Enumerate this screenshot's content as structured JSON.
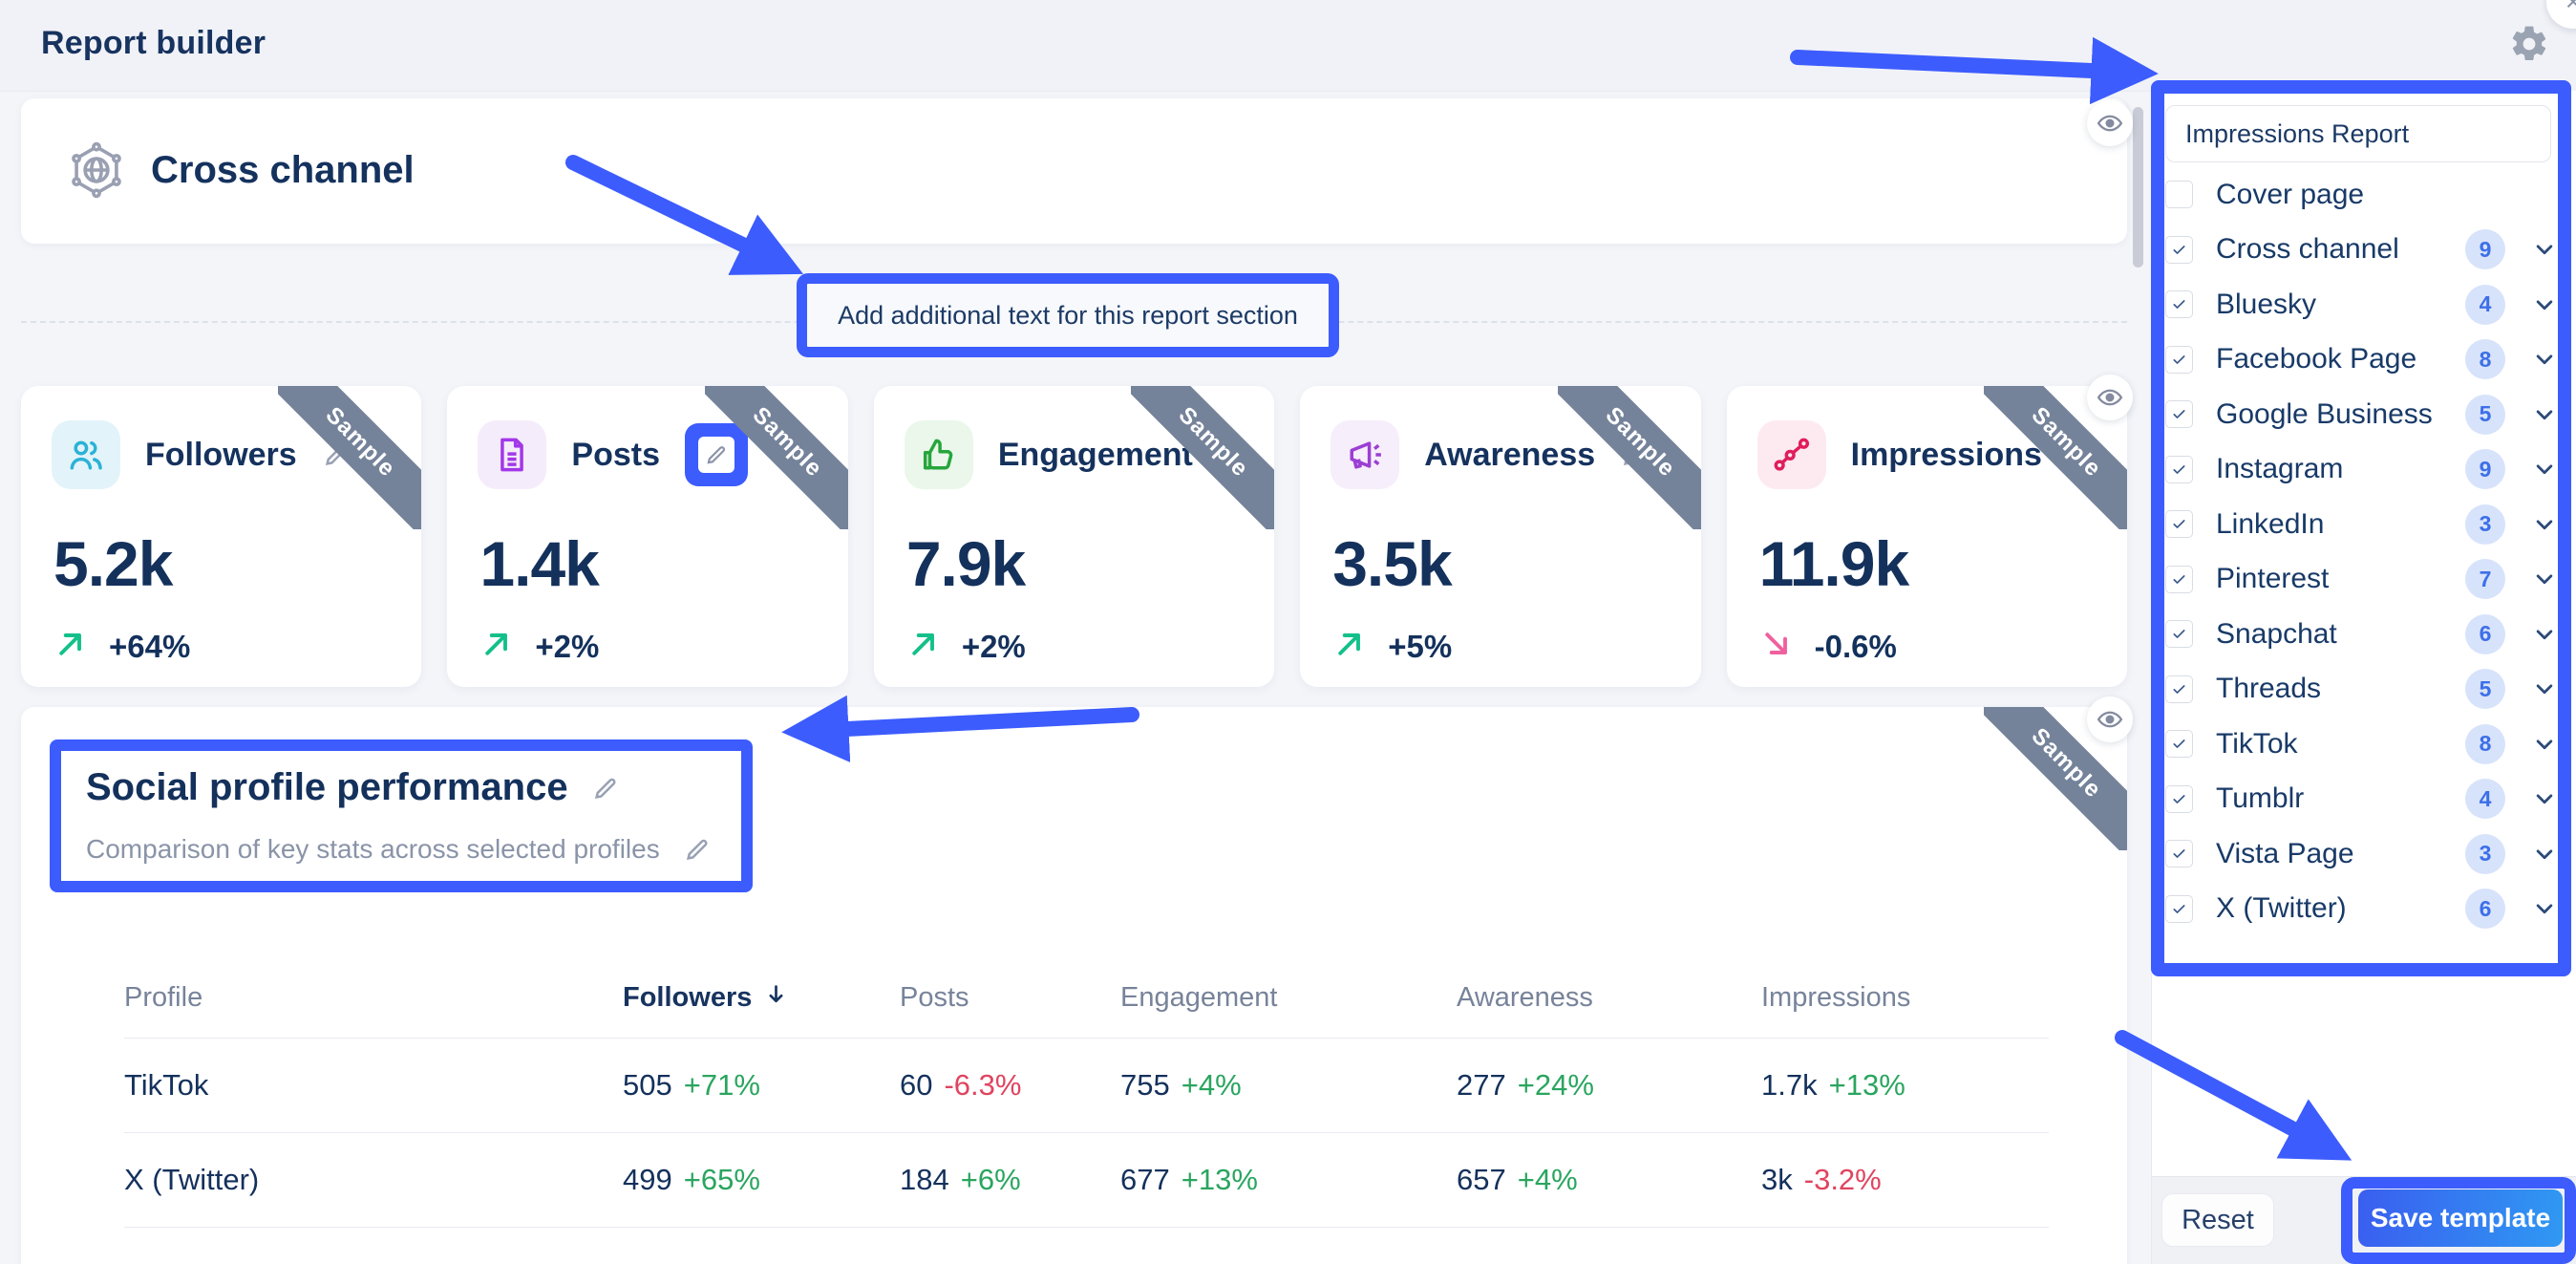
{
  "header": {
    "title": "Report builder"
  },
  "main": {
    "cross_channel_title": "Cross channel",
    "add_text_label": "Add additional text for this report section",
    "sample_label": "Sample",
    "kpi_cards": [
      {
        "title": "Followers",
        "value": "5.2k",
        "change": "+64%",
        "trend": "up",
        "icon": "followers-users-icon",
        "icon_color": "#2ab2d6",
        "tile_bg": "#e2f3fa",
        "edit_highlighted": false
      },
      {
        "title": "Posts",
        "value": "1.4k",
        "change": "+2%",
        "trend": "up",
        "icon": "posts-document-icon",
        "icon_color": "#a238e8",
        "tile_bg": "#f5ecfb",
        "edit_highlighted": true
      },
      {
        "title": "Engagement",
        "value": "7.9k",
        "change": "+2%",
        "trend": "up",
        "icon": "engagement-thumbs-up-icon",
        "icon_color": "#26a53c",
        "tile_bg": "#eaf7ea",
        "edit_highlighted": false
      },
      {
        "title": "Awareness",
        "value": "3.5k",
        "change": "+5%",
        "trend": "up",
        "icon": "awareness-megaphone-icon",
        "icon_color": "#9b3fd4",
        "tile_bg": "#f6eefb",
        "edit_highlighted": false
      },
      {
        "title": "Impressions",
        "value": "11.9k",
        "change": "-0.6%",
        "trend": "down",
        "icon": "impressions-scatter-icon",
        "icon_color": "#e01e5a",
        "tile_bg": "#fdeaf1",
        "edit_highlighted": false
      }
    ],
    "performance": {
      "title": "Social profile performance",
      "subtitle": "Comparison of key stats across selected profiles",
      "table": {
        "columns": [
          "Profile",
          "Followers",
          "Posts",
          "Engagement",
          "Awareness",
          "Impressions"
        ],
        "sorted_column_index": 1,
        "rows": [
          {
            "profile": "TikTok",
            "cells": [
              {
                "value": "505",
                "change": "+71%",
                "trend": "up"
              },
              {
                "value": "60",
                "change": "-6.3%",
                "trend": "down"
              },
              {
                "value": "755",
                "change": "+4%",
                "trend": "up"
              },
              {
                "value": "277",
                "change": "+24%",
                "trend": "up"
              },
              {
                "value": "1.7k",
                "change": "+13%",
                "trend": "up"
              }
            ]
          },
          {
            "profile": "X (Twitter)",
            "cells": [
              {
                "value": "499",
                "change": "+65%",
                "trend": "up"
              },
              {
                "value": "184",
                "change": "+6%",
                "trend": "up"
              },
              {
                "value": "677",
                "change": "+13%",
                "trend": "up"
              },
              {
                "value": "657",
                "change": "+4%",
                "trend": "up"
              },
              {
                "value": "3k",
                "change": "-3.2%",
                "trend": "down"
              }
            ]
          }
        ]
      }
    }
  },
  "sidebar": {
    "report_name": "Impressions Report",
    "sections": [
      {
        "label": "Cover page",
        "checked": false,
        "count": null
      },
      {
        "label": "Cross channel",
        "checked": true,
        "count": "9"
      },
      {
        "label": "Bluesky",
        "checked": true,
        "count": "4"
      },
      {
        "label": "Facebook Page",
        "checked": true,
        "count": "8"
      },
      {
        "label": "Google Business",
        "checked": true,
        "count": "5"
      },
      {
        "label": "Instagram",
        "checked": true,
        "count": "9"
      },
      {
        "label": "LinkedIn",
        "checked": true,
        "count": "3"
      },
      {
        "label": "Pinterest",
        "checked": true,
        "count": "7"
      },
      {
        "label": "Snapchat",
        "checked": true,
        "count": "6"
      },
      {
        "label": "Threads",
        "checked": true,
        "count": "5"
      },
      {
        "label": "TikTok",
        "checked": true,
        "count": "8"
      },
      {
        "label": "Tumblr",
        "checked": true,
        "count": "4"
      },
      {
        "label": "Vista Page",
        "checked": true,
        "count": "3"
      },
      {
        "label": "X (Twitter)",
        "checked": true,
        "count": "6"
      }
    ],
    "reset_label": "Reset",
    "save_label": "Save template"
  },
  "colors": {
    "annotation_blue": "#3c5cfe",
    "navy_text": "#14315c",
    "muted_text": "#77839a",
    "positive_green": "#2aa55f",
    "negative_red": "#e0445f",
    "trend_up_arrow": "#14c08a",
    "trend_down_arrow": "#f0609f",
    "ribbon_gray": "#75839a",
    "badge_bg": "#d7e3fb",
    "badge_text": "#3d6fe8",
    "save_gradient_start": "#3a5ef0",
    "save_gradient_end": "#2f99f2"
  }
}
